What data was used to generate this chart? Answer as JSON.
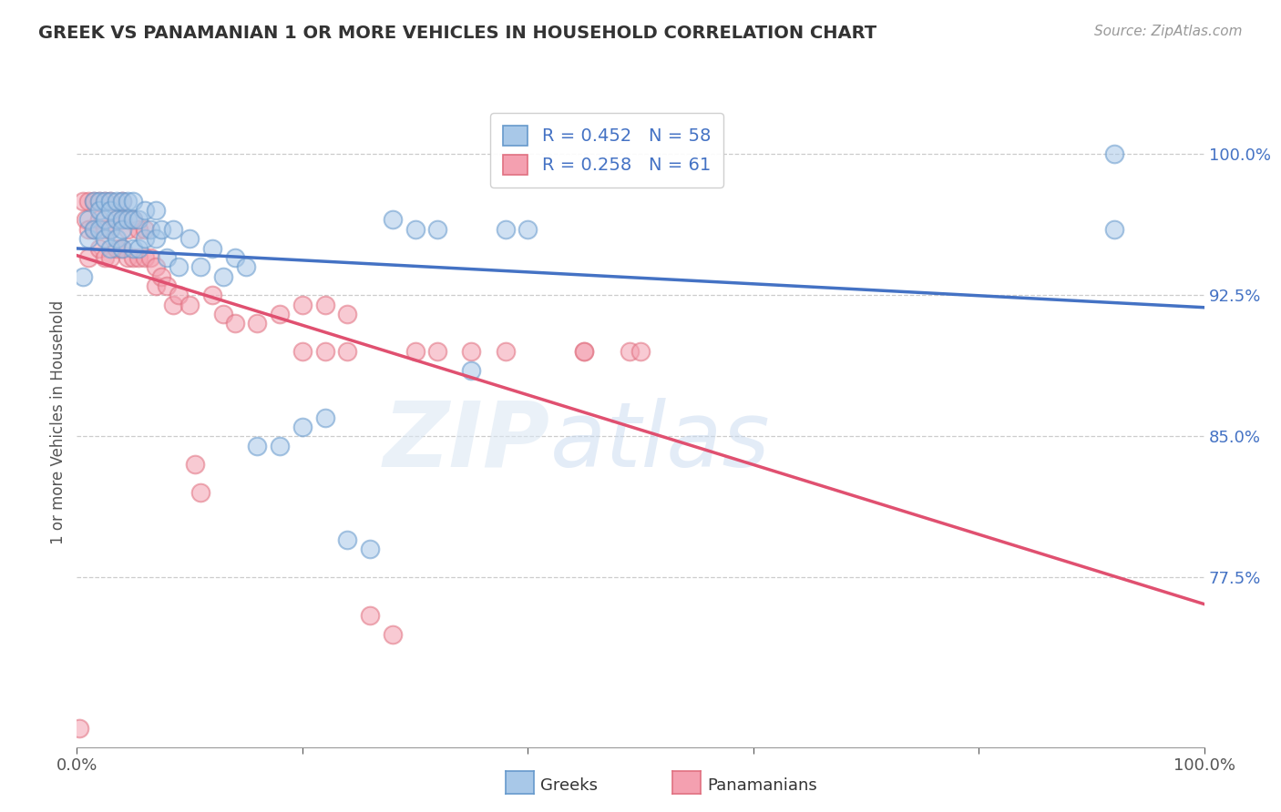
{
  "title": "GREEK VS PANAMANIAN 1 OR MORE VEHICLES IN HOUSEHOLD CORRELATION CHART",
  "source": "Source: ZipAtlas.com",
  "ylabel": "1 or more Vehicles in Household",
  "R_greek": 0.452,
  "N_greek": 58,
  "R_panamanian": 0.258,
  "N_panamanian": 61,
  "ytick_labels": [
    "77.5%",
    "85.0%",
    "92.5%",
    "100.0%"
  ],
  "ytick_values": [
    0.775,
    0.85,
    0.925,
    1.0
  ],
  "xlim": [
    0.0,
    1.0
  ],
  "ylim": [
    0.685,
    1.03
  ],
  "greek_color": "#a8c8e8",
  "panamanian_color": "#f4a0b0",
  "greek_edge_color": "#6699cc",
  "panamanian_edge_color": "#e07080",
  "greek_line_color": "#4472C4",
  "panamanian_line_color": "#e05070",
  "background_color": "#ffffff",
  "legend_text_color": "#4472C4",
  "greek_x": [
    0.005,
    0.01,
    0.01,
    0.015,
    0.015,
    0.02,
    0.02,
    0.02,
    0.025,
    0.025,
    0.025,
    0.03,
    0.03,
    0.03,
    0.03,
    0.035,
    0.035,
    0.035,
    0.04,
    0.04,
    0.04,
    0.04,
    0.045,
    0.045,
    0.05,
    0.05,
    0.05,
    0.055,
    0.055,
    0.06,
    0.06,
    0.065,
    0.07,
    0.07,
    0.075,
    0.08,
    0.085,
    0.09,
    0.1,
    0.11,
    0.12,
    0.13,
    0.14,
    0.15,
    0.16,
    0.18,
    0.2,
    0.22,
    0.24,
    0.26,
    0.28,
    0.3,
    0.32,
    0.35,
    0.38,
    0.4,
    0.92,
    0.92
  ],
  "greek_y": [
    0.935,
    0.955,
    0.965,
    0.975,
    0.96,
    0.975,
    0.97,
    0.96,
    0.975,
    0.965,
    0.955,
    0.975,
    0.97,
    0.96,
    0.95,
    0.975,
    0.965,
    0.955,
    0.975,
    0.965,
    0.96,
    0.95,
    0.975,
    0.965,
    0.975,
    0.965,
    0.95,
    0.965,
    0.95,
    0.97,
    0.955,
    0.96,
    0.97,
    0.955,
    0.96,
    0.945,
    0.96,
    0.94,
    0.955,
    0.94,
    0.95,
    0.935,
    0.945,
    0.94,
    0.845,
    0.845,
    0.855,
    0.86,
    0.795,
    0.79,
    0.965,
    0.96,
    0.96,
    0.885,
    0.96,
    0.96,
    0.96,
    1.0
  ],
  "pan_x": [
    0.002,
    0.005,
    0.008,
    0.01,
    0.01,
    0.01,
    0.015,
    0.015,
    0.02,
    0.02,
    0.02,
    0.025,
    0.025,
    0.025,
    0.03,
    0.03,
    0.03,
    0.035,
    0.035,
    0.04,
    0.04,
    0.04,
    0.045,
    0.045,
    0.05,
    0.05,
    0.055,
    0.055,
    0.06,
    0.06,
    0.065,
    0.07,
    0.07,
    0.075,
    0.08,
    0.085,
    0.09,
    0.1,
    0.105,
    0.11,
    0.12,
    0.13,
    0.14,
    0.16,
    0.18,
    0.2,
    0.22,
    0.24,
    0.26,
    0.28,
    0.3,
    0.32,
    0.35,
    0.38,
    0.2,
    0.22,
    0.24,
    0.45,
    0.45,
    0.49,
    0.5
  ],
  "pan_y": [
    0.695,
    0.975,
    0.965,
    0.975,
    0.96,
    0.945,
    0.975,
    0.96,
    0.975,
    0.965,
    0.95,
    0.975,
    0.96,
    0.945,
    0.975,
    0.96,
    0.945,
    0.965,
    0.95,
    0.975,
    0.965,
    0.95,
    0.96,
    0.945,
    0.965,
    0.945,
    0.96,
    0.945,
    0.96,
    0.945,
    0.945,
    0.94,
    0.93,
    0.935,
    0.93,
    0.92,
    0.925,
    0.92,
    0.835,
    0.82,
    0.925,
    0.915,
    0.91,
    0.91,
    0.915,
    0.92,
    0.92,
    0.915,
    0.755,
    0.745,
    0.895,
    0.895,
    0.895,
    0.895,
    0.895,
    0.895,
    0.895,
    0.895,
    0.895,
    0.895,
    0.895
  ]
}
